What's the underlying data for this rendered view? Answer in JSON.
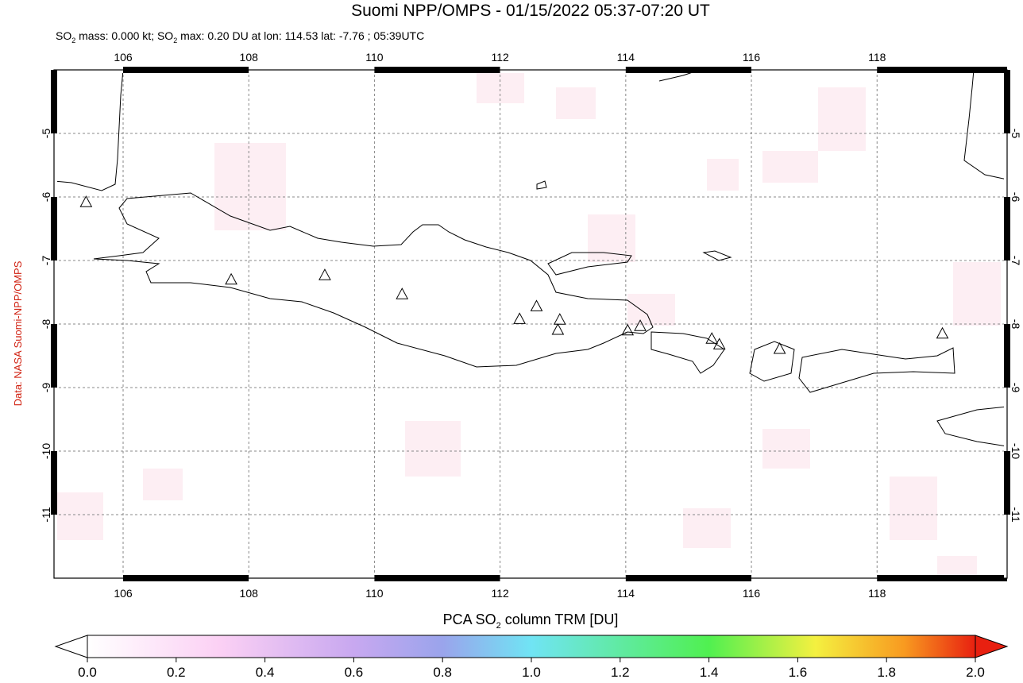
{
  "title": "Suomi NPP/OMPS - 01/15/2022 05:37-07:20 UT",
  "subtitle": [
    "SO",
    "2",
    " mass: 0.000 kt; SO",
    "2",
    " max: 0.20 DU at lon: 114.53 lat: -7.76 ; 05:39UTC"
  ],
  "credit": "Data: NASA Suomi-NPP/OMPS",
  "map": {
    "xlim": [
      104.9,
      120.07
    ],
    "ylim": [
      -12,
      -4
    ],
    "xticks": [
      106,
      108,
      110,
      112,
      114,
      116,
      118
    ],
    "yticks": [
      -5,
      -6,
      -7,
      -8,
      -9,
      -10,
      -11
    ],
    "grid": true,
    "volcanoes": [
      {
        "lon": 105.41,
        "lat": -6.09
      },
      {
        "lon": 107.72,
        "lat": -7.31
      },
      {
        "lon": 109.21,
        "lat": -7.24
      },
      {
        "lon": 110.44,
        "lat": -7.54
      },
      {
        "lon": 112.31,
        "lat": -7.93
      },
      {
        "lon": 112.58,
        "lat": -7.73
      },
      {
        "lon": 112.95,
        "lat": -7.94
      },
      {
        "lon": 112.92,
        "lat": -8.1
      },
      {
        "lon": 114.03,
        "lat": -8.11
      },
      {
        "lon": 114.23,
        "lat": -8.04
      },
      {
        "lon": 115.37,
        "lat": -8.24
      },
      {
        "lon": 115.49,
        "lat": -8.33
      },
      {
        "lon": 116.45,
        "lat": -8.4
      },
      {
        "lon": 119.04,
        "lat": -8.16
      }
    ]
  },
  "colorbar": {
    "label": [
      "PCA SO",
      "2",
      " column TRM [DU]"
    ],
    "lim": [
      0,
      2
    ],
    "ticks": [
      {
        "value": 0,
        "label": "0.0"
      },
      {
        "value": 0.2,
        "label": "0.2"
      },
      {
        "value": 0.4,
        "label": "0.4"
      },
      {
        "value": 0.6,
        "label": "0.6"
      },
      {
        "value": 0.8,
        "label": "0.8"
      },
      {
        "value": 1,
        "label": "1.0"
      },
      {
        "value": 1.2,
        "label": "1.2"
      },
      {
        "value": 1.4,
        "label": "1.4"
      },
      {
        "value": 1.6,
        "label": "1.6"
      },
      {
        "value": 1.8,
        "label": "1.8"
      },
      {
        "value": 2,
        "label": "2.0"
      }
    ]
  }
}
